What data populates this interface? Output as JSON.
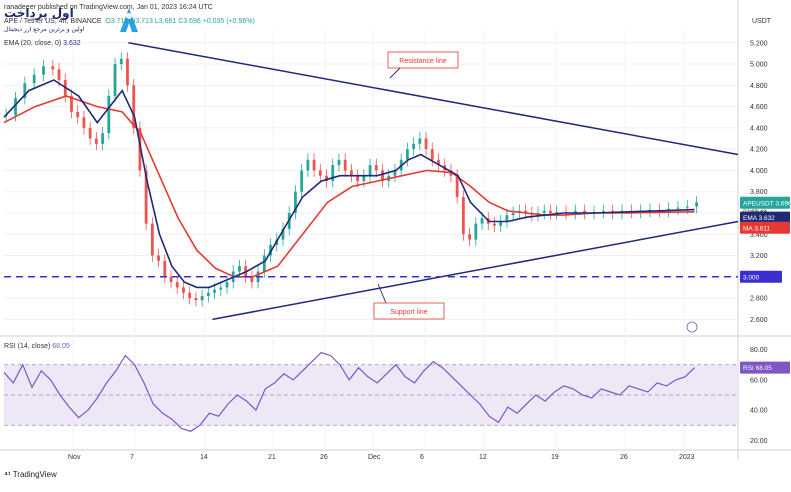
{
  "header": {
    "publisher": "ranadeeer published on TradingView.com, Jan 01, 2023 16:24 UTC",
    "symbol": "APE / Tether US, 4h, BINANCE",
    "ohlc": "O3.713  H3.713  L3.661  C3.696  +0.035 (+0.96%)",
    "ema_legend": "EMA (20, close, 0)",
    "ema_value": "3.632",
    "rsi_legend": "RSI (14, close)",
    "rsi_value": "68.05",
    "currency": "USDT",
    "footer_logo": "TradingView"
  },
  "watermark": {
    "brand": "اول پرداخت",
    "tagline": "اولین و برترین مرجع ارز دیجیتال",
    "logo_icon": "wallet-logo-icon"
  },
  "colors": {
    "candle_up": "#26a69a",
    "candle_down": "#ef5350",
    "ema": "#1e2a78",
    "ma": "#e53935",
    "trendline": "#1e2a78",
    "support_level": "#3a2fd0",
    "rsi_line": "#7e57c2",
    "rsi_band": "#ede7f6"
  },
  "chart_data": [
    {
      "type": "line",
      "title": "",
      "xlabel": "",
      "ylabel": "USDT",
      "x_ticks": [
        "Nov",
        "7",
        "14",
        "21",
        "26",
        "Dec",
        "6",
        "12",
        "19",
        "26",
        "2023"
      ],
      "y_ticks": [
        2.6,
        2.8,
        3.0,
        3.2,
        3.4,
        3.6,
        3.8,
        4.0,
        4.2,
        4.4,
        4.6,
        4.8,
        5.0,
        5.2
      ],
      "ylim": [
        2.5,
        5.32
      ],
      "grid": true,
      "legend": "top-left",
      "series": [
        {
          "name": "APEUSDT",
          "kind": "price",
          "x": [
            0,
            3,
            6,
            9,
            12,
            15,
            17,
            19,
            21,
            23,
            25,
            27,
            29,
            31,
            33,
            35,
            37,
            39,
            41,
            43,
            45,
            47,
            49,
            51,
            53,
            55,
            57,
            59,
            61,
            63,
            65,
            67,
            69,
            71,
            73,
            75,
            77,
            79,
            81,
            83,
            85,
            87,
            89,
            91,
            93,
            95,
            97,
            99,
            101,
            103,
            105,
            107,
            109,
            111,
            113,
            115,
            117,
            119,
            121,
            123,
            125,
            127,
            129,
            131,
            133,
            135,
            137,
            139,
            141,
            143,
            145,
            147,
            149,
            151,
            153,
            155,
            157,
            159,
            161,
            163,
            165,
            167,
            169,
            171,
            173,
            175,
            177,
            180,
            183,
            186,
            189,
            192,
            195,
            198,
            201,
            204,
            207,
            210,
            213,
            216,
            219,
            222
          ],
          "values": [
            4.52,
            4.68,
            4.82,
            4.9,
            4.98,
            4.95,
            4.85,
            4.7,
            4.55,
            4.5,
            4.4,
            4.3,
            4.25,
            4.35,
            4.7,
            5.0,
            5.05,
            4.8,
            4.4,
            4.0,
            3.5,
            3.2,
            3.15,
            3.0,
            2.95,
            2.9,
            2.85,
            2.8,
            2.78,
            2.82,
            2.85,
            2.88,
            2.9,
            2.95,
            3.05,
            3.1,
            3.0,
            2.95,
            3.05,
            3.2,
            3.3,
            3.35,
            3.45,
            3.6,
            3.8,
            4.0,
            4.1,
            4.0,
            3.95,
            3.9,
            4.05,
            4.1,
            4.0,
            3.95,
            3.9,
            3.95,
            4.05,
            4.0,
            3.9,
            3.95,
            4.0,
            4.1,
            4.2,
            4.25,
            4.3,
            4.2,
            4.1,
            4.05,
            4.0,
            3.95,
            3.75,
            3.4,
            3.35,
            3.5,
            3.55,
            3.5,
            3.48,
            3.52,
            3.58,
            3.6,
            3.62,
            3.6,
            3.58,
            3.6,
            3.62,
            3.6,
            3.61,
            3.6,
            3.62,
            3.6,
            3.61,
            3.62,
            3.6,
            3.62,
            3.61,
            3.62,
            3.63,
            3.62,
            3.64,
            3.65,
            3.66,
            3.7
          ]
        },
        {
          "name": "EMA",
          "kind": "ema",
          "x": [
            0,
            8,
            16,
            24,
            30,
            34,
            38,
            42,
            46,
            50,
            54,
            58,
            62,
            66,
            70,
            74,
            78,
            84,
            90,
            96,
            102,
            108,
            114,
            120,
            126,
            130,
            134,
            140,
            146,
            150,
            156,
            162,
            168,
            174,
            180,
            190,
            200,
            210,
            222
          ],
          "values": [
            4.5,
            4.75,
            4.85,
            4.7,
            4.45,
            4.6,
            4.75,
            4.5,
            3.9,
            3.4,
            3.1,
            2.95,
            2.9,
            2.9,
            2.95,
            3.0,
            3.05,
            3.15,
            3.45,
            3.75,
            3.9,
            3.95,
            3.95,
            3.95,
            4.0,
            4.1,
            4.15,
            4.05,
            3.95,
            3.7,
            3.52,
            3.52,
            3.56,
            3.58,
            3.6,
            3.6,
            3.61,
            3.62,
            3.632
          ]
        },
        {
          "name": "MA",
          "kind": "ma",
          "x": [
            0,
            10,
            20,
            30,
            38,
            44,
            50,
            56,
            62,
            68,
            74,
            80,
            88,
            96,
            104,
            112,
            120,
            128,
            136,
            144,
            150,
            156,
            162,
            168,
            174,
            180,
            190,
            200,
            210,
            222
          ],
          "values": [
            4.45,
            4.6,
            4.7,
            4.6,
            4.55,
            4.35,
            3.95,
            3.55,
            3.25,
            3.08,
            3.0,
            3.0,
            3.1,
            3.4,
            3.7,
            3.85,
            3.9,
            3.95,
            4.0,
            3.98,
            3.85,
            3.7,
            3.62,
            3.6,
            3.58,
            3.58,
            3.6,
            3.6,
            3.605,
            3.611
          ]
        }
      ],
      "lines": [
        {
          "name": "Resistance line",
          "x": [
            40,
            236
          ],
          "values": [
            5.2,
            4.15
          ]
        },
        {
          "name": "Support line",
          "x": [
            67,
            236
          ],
          "values": [
            2.6,
            3.52
          ]
        },
        {
          "name": "Support level",
          "x": [
            0,
            236
          ],
          "values": [
            3.0,
            3.0
          ],
          "style": "dashed"
        }
      ],
      "annotations": [
        "Resistance line",
        "Support line"
      ],
      "price_labels": [
        {
          "label": "APEUSDT",
          "value": "3.696",
          "sub": "03:35:42",
          "y": 3.696,
          "color": "#26a69a"
        },
        {
          "label": "EMA",
          "value": "3.632",
          "y": 3.632,
          "color": "#1e2a78"
        },
        {
          "label": "MA",
          "value": "3.611",
          "y": 3.611,
          "color": "#e53935"
        },
        {
          "label": "",
          "value": "3.000",
          "y": 3.0,
          "color": "#3a2fd0"
        }
      ]
    },
    {
      "type": "line",
      "title": "",
      "xlabel": "",
      "ylabel": "",
      "y_ticks": [
        20,
        40,
        60,
        80
      ],
      "ylim": [
        15,
        85
      ],
      "band": [
        30,
        70
      ],
      "grid": true,
      "series": [
        {
          "name": "RSI",
          "x": [
            0,
            3,
            6,
            9,
            12,
            15,
            18,
            21,
            24,
            27,
            30,
            33,
            36,
            39,
            42,
            45,
            48,
            51,
            54,
            57,
            60,
            63,
            66,
            69,
            72,
            75,
            78,
            81,
            84,
            87,
            90,
            93,
            96,
            99,
            102,
            105,
            108,
            111,
            114,
            117,
            120,
            123,
            126,
            129,
            132,
            135,
            138,
            141,
            144,
            147,
            150,
            153,
            156,
            159,
            162,
            165,
            168,
            171,
            174,
            177,
            180,
            183,
            186,
            189,
            192,
            195,
            198,
            201,
            204,
            207,
            210,
            213,
            216,
            219,
            222
          ],
          "values": [
            65,
            58,
            70,
            55,
            66,
            60,
            50,
            42,
            35,
            40,
            48,
            58,
            66,
            76,
            70,
            58,
            44,
            38,
            34,
            28,
            26,
            30,
            38,
            36,
            44,
            50,
            46,
            40,
            54,
            58,
            64,
            60,
            66,
            72,
            78,
            76,
            70,
            60,
            68,
            62,
            58,
            64,
            70,
            62,
            58,
            66,
            72,
            68,
            62,
            56,
            50,
            44,
            36,
            32,
            42,
            38,
            44,
            50,
            46,
            52,
            56,
            54,
            50,
            48,
            54,
            52,
            50,
            56,
            54,
            52,
            58,
            56,
            60,
            62,
            68.05
          ]
        }
      ],
      "price_labels": [
        {
          "label": "RSI",
          "value": "68.05",
          "y": 68.05,
          "color": "#7e57c2"
        }
      ]
    }
  ]
}
